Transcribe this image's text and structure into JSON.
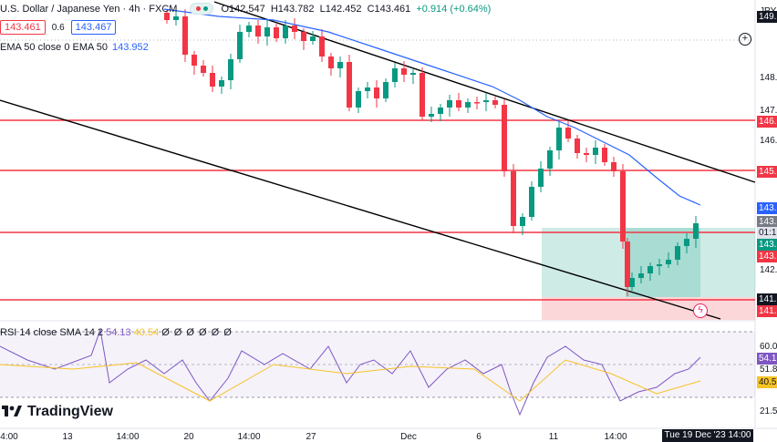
{
  "symbol": {
    "title": "U.S. Dollar / Japanese Yen · 4h · FXCM",
    "ohlc": {
      "o": "O142.547",
      "h": "H143.782",
      "l": "L142.452",
      "c": "C143.461",
      "chg": "+0.914 (+0.64%)"
    }
  },
  "trade": {
    "sell": "143.461",
    "spread": "0.6",
    "buy": "143.467"
  },
  "ema": {
    "label": "EMA 50 close 0 EMA 50",
    "value": "143.952"
  },
  "rsi": {
    "label": "RSI 14 close SMA 14 2",
    "rsi_value": "54.13",
    "sma_value": "40.54",
    "extra": "Ø Ø Ø Ø Ø Ø"
  },
  "currency": "JPY",
  "price_axis": [
    {
      "text": "149.",
      "style": "dark"
    },
    {
      "text": "148.",
      "style": "plain"
    },
    {
      "text": "147.",
      "style": "plain"
    },
    {
      "text": "146.",
      "style": "red"
    },
    {
      "text": "146.",
      "style": "plain"
    },
    {
      "text": "145.",
      "style": "red"
    },
    {
      "text": "143.",
      "style": "blue"
    },
    {
      "text": "143.",
      "style": "grey"
    },
    {
      "text": "01:1",
      "style": "lgrey"
    },
    {
      "text": "143.",
      "style": "green"
    },
    {
      "text": "143.",
      "style": "red"
    },
    {
      "text": "142.",
      "style": "plain"
    },
    {
      "text": "141.",
      "style": "dark"
    },
    {
      "text": "141.",
      "style": "red"
    }
  ],
  "rsi_axis": [
    {
      "text": "60.0",
      "style": "plain"
    },
    {
      "text": "54.1",
      "style": "purple"
    },
    {
      "text": "51.8",
      "style": "plain"
    },
    {
      "text": "40.5",
      "style": "yellow"
    },
    {
      "text": "21.5",
      "style": "plain"
    }
  ],
  "time_axis": [
    "4:00",
    "13",
    "14:00",
    "20",
    "14:00",
    "27",
    "Dec",
    "6",
    "11",
    "14:00",
    "14:00"
  ],
  "active_time": "Tue 19 Dec '23  14:00",
  "logo": "TradingView",
  "colors": {
    "up": "#089981",
    "down": "#f23645",
    "ema": "#2962ff",
    "rsi": "#7e57c2",
    "rsi_ma": "#f7c325",
    "hline": "#f23645",
    "trend": "#000000"
  },
  "icons": {
    "add": "plus-circle-icon",
    "alert": "lightning-alert-icon"
  }
}
